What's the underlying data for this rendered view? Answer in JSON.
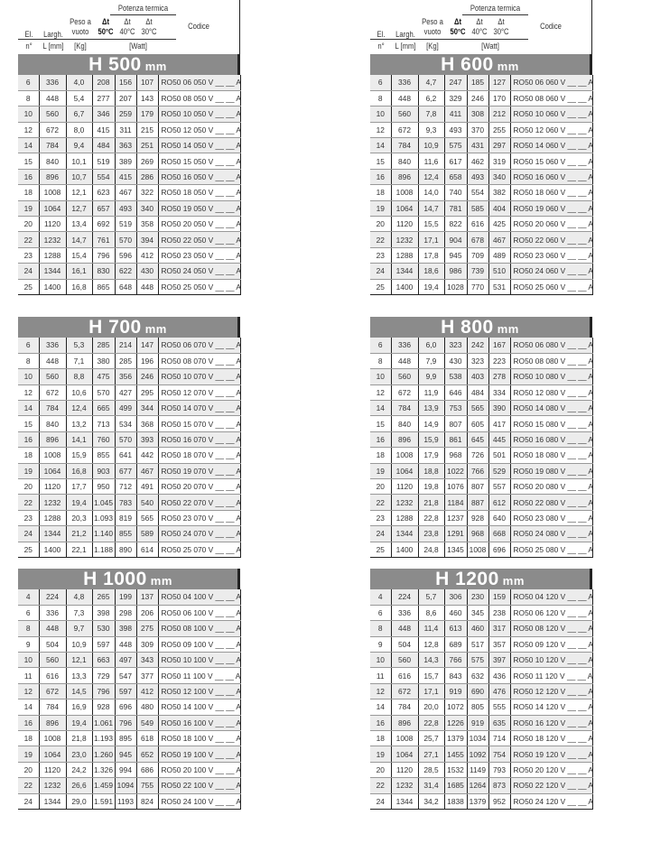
{
  "header": {
    "group": "Potenza termica",
    "el": "El.",
    "largh": "Largh.",
    "peso": "Peso a vuoto",
    "dt50": "Δt 50°C",
    "dt40": "Δt 40°C",
    "dt30": "Δt 30°C",
    "codice": "Codice",
    "n": "n°",
    "l": "L [mm]",
    "kg": "[Kg]",
    "watt": "[Watt]"
  },
  "colors": {
    "banner": "#8b8b8b",
    "row_alt": "#ececec"
  },
  "tables": [
    {
      "title": "H 500",
      "unit": "mm",
      "rows": [
        [
          "6",
          "336",
          "4,0",
          "208",
          "156",
          "107",
          "RO50 06 050 V __ __ A"
        ],
        [
          "8",
          "448",
          "5,4",
          "277",
          "207",
          "143",
          "RO50 08 050 V __ __ A"
        ],
        [
          "10",
          "560",
          "6,7",
          "346",
          "259",
          "179",
          "RO50 10 050 V __ __ A"
        ],
        [
          "12",
          "672",
          "8,0",
          "415",
          "311",
          "215",
          "RO50 12 050 V __ __ A"
        ],
        [
          "14",
          "784",
          "9,4",
          "484",
          "363",
          "251",
          "RO50 14 050 V __ __ A"
        ],
        [
          "15",
          "840",
          "10,1",
          "519",
          "389",
          "269",
          "RO50 15 050 V __ __ A"
        ],
        [
          "16",
          "896",
          "10,7",
          "554",
          "415",
          "286",
          "RO50 16 050 V __ __ A"
        ],
        [
          "18",
          "1008",
          "12,1",
          "623",
          "467",
          "322",
          "RO50 18 050 V __ __ A"
        ],
        [
          "19",
          "1064",
          "12,7",
          "657",
          "493",
          "340",
          "RO50 19 050 V __ __ A"
        ],
        [
          "20",
          "1120",
          "13,4",
          "692",
          "519",
          "358",
          "RO50 20 050 V __ __ A"
        ],
        [
          "22",
          "1232",
          "14,7",
          "761",
          "570",
          "394",
          "RO50 22 050 V __ __ A"
        ],
        [
          "23",
          "1288",
          "15,4",
          "796",
          "596",
          "412",
          "RO50 23 050 V __ __ A"
        ],
        [
          "24",
          "1344",
          "16,1",
          "830",
          "622",
          "430",
          "RO50 24 050 V __ __ A"
        ],
        [
          "25",
          "1400",
          "16,8",
          "865",
          "648",
          "448",
          "RO50 25 050 V __ __ A"
        ]
      ]
    },
    {
      "title": "H 600",
      "unit": "mm",
      "rows": [
        [
          "6",
          "336",
          "4,7",
          "247",
          "185",
          "127",
          "RO50 06 060 V __ __ A"
        ],
        [
          "8",
          "448",
          "6,2",
          "329",
          "246",
          "170",
          "RO50 08 060 V __ __ A"
        ],
        [
          "10",
          "560",
          "7,8",
          "411",
          "308",
          "212",
          "RO50 10 060 V __ __ A"
        ],
        [
          "12",
          "672",
          "9,3",
          "493",
          "370",
          "255",
          "RO50 12 060 V __ __ A"
        ],
        [
          "14",
          "784",
          "10,9",
          "575",
          "431",
          "297",
          "RO50 14 060 V __ __ A"
        ],
        [
          "15",
          "840",
          "11,6",
          "617",
          "462",
          "319",
          "RO50 15 060 V __ __ A"
        ],
        [
          "16",
          "896",
          "12,4",
          "658",
          "493",
          "340",
          "RO50 16 060 V __ __ A"
        ],
        [
          "18",
          "1008",
          "14,0",
          "740",
          "554",
          "382",
          "RO50 18 060 V __ __ A"
        ],
        [
          "19",
          "1064",
          "14,7",
          "781",
          "585",
          "404",
          "RO50 19 060 V __ __ A"
        ],
        [
          "20",
          "1120",
          "15,5",
          "822",
          "616",
          "425",
          "RO50 20 060 V __ __ A"
        ],
        [
          "22",
          "1232",
          "17,1",
          "904",
          "678",
          "467",
          "RO50 22 060 V __ __ A"
        ],
        [
          "23",
          "1288",
          "17,8",
          "945",
          "709",
          "489",
          "RO50 23 060 V __ __ A"
        ],
        [
          "24",
          "1344",
          "18,6",
          "986",
          "739",
          "510",
          "RO50 24 060 V __ __ A"
        ],
        [
          "25",
          "1400",
          "19,4",
          "1028",
          "770",
          "531",
          "RO50 25 060 V __ __ A"
        ]
      ]
    },
    {
      "title": "H 700",
      "unit": "mm",
      "rows": [
        [
          "6",
          "336",
          "5,3",
          "285",
          "214",
          "147",
          "RO50 06 070 V __ __ A"
        ],
        [
          "8",
          "448",
          "7,1",
          "380",
          "285",
          "196",
          "RO50 08 070 V __ __ A"
        ],
        [
          "10",
          "560",
          "8,8",
          "475",
          "356",
          "246",
          "RO50 10 070 V __ __ A"
        ],
        [
          "12",
          "672",
          "10,6",
          "570",
          "427",
          "295",
          "RO50 12 070 V __ __ A"
        ],
        [
          "14",
          "784",
          "12,4",
          "665",
          "499",
          "344",
          "RO50 14 070 V __ __ A"
        ],
        [
          "15",
          "840",
          "13,2",
          "713",
          "534",
          "368",
          "RO50 15 070 V __ __ A"
        ],
        [
          "16",
          "896",
          "14,1",
          "760",
          "570",
          "393",
          "RO50 16 070 V __ __ A"
        ],
        [
          "18",
          "1008",
          "15,9",
          "855",
          "641",
          "442",
          "RO50 18 070 V __ __ A"
        ],
        [
          "19",
          "1064",
          "16,8",
          "903",
          "677",
          "467",
          "RO50 19 070 V __ __ A"
        ],
        [
          "20",
          "1120",
          "17,7",
          "950",
          "712",
          "491",
          "RO50 20 070 V __ __ A"
        ],
        [
          "22",
          "1232",
          "19,4",
          "1.045",
          "783",
          "540",
          "RO50 22 070 V __ __ A"
        ],
        [
          "23",
          "1288",
          "20,3",
          "1.093",
          "819",
          "565",
          "RO50 23 070 V __ __ A"
        ],
        [
          "24",
          "1344",
          "21,2",
          "1.140",
          "855",
          "589",
          "RO50 24 070 V __ __ A"
        ],
        [
          "25",
          "1400",
          "22,1",
          "1.188",
          "890",
          "614",
          "RO50 25 070 V __ __ A"
        ]
      ]
    },
    {
      "title": "H 800",
      "unit": "mm",
      "rows": [
        [
          "6",
          "336",
          "6,0",
          "323",
          "242",
          "167",
          "RO50 06 080 V __ __ A"
        ],
        [
          "8",
          "448",
          "7,9",
          "430",
          "323",
          "223",
          "RO50 08 080 V __ __ A"
        ],
        [
          "10",
          "560",
          "9,9",
          "538",
          "403",
          "278",
          "RO50 10 080 V __ __ A"
        ],
        [
          "12",
          "672",
          "11,9",
          "646",
          "484",
          "334",
          "RO50 12 080 V __ __ A"
        ],
        [
          "14",
          "784",
          "13,9",
          "753",
          "565",
          "390",
          "RO50 14 080 V __ __ A"
        ],
        [
          "15",
          "840",
          "14,9",
          "807",
          "605",
          "417",
          "RO50 15 080 V __ __ A"
        ],
        [
          "16",
          "896",
          "15,9",
          "861",
          "645",
          "445",
          "RO50 16 080 V __ __ A"
        ],
        [
          "18",
          "1008",
          "17,9",
          "968",
          "726",
          "501",
          "RO50 18 080 V __ __ A"
        ],
        [
          "19",
          "1064",
          "18,8",
          "1022",
          "766",
          "529",
          "RO50 19 080 V __ __ A"
        ],
        [
          "20",
          "1120",
          "19,8",
          "1076",
          "807",
          "557",
          "RO50 20 080 V __ __ A"
        ],
        [
          "22",
          "1232",
          "21,8",
          "1184",
          "887",
          "612",
          "RO50 22 080 V __ __ A"
        ],
        [
          "23",
          "1288",
          "22,8",
          "1237",
          "928",
          "640",
          "RO50 23 080 V __ __ A"
        ],
        [
          "24",
          "1344",
          "23,8",
          "1291",
          "968",
          "668",
          "RO50 24 080 V __ __ A"
        ],
        [
          "25",
          "1400",
          "24,8",
          "1345",
          "1008",
          "696",
          "RO50 25 080 V __ __ A"
        ]
      ]
    },
    {
      "title": "H 1000",
      "unit": "mm",
      "rows": [
        [
          "4",
          "224",
          "4,8",
          "265",
          "199",
          "137",
          "RO50 04 100 V __ __ A"
        ],
        [
          "6",
          "336",
          "7,3",
          "398",
          "298",
          "206",
          "RO50 06 100 V __ __ A"
        ],
        [
          "8",
          "448",
          "9,7",
          "530",
          "398",
          "275",
          "RO50 08 100 V __ __ A"
        ],
        [
          "9",
          "504",
          "10,9",
          "597",
          "448",
          "309",
          "RO50 09 100 V __ __ A"
        ],
        [
          "10",
          "560",
          "12,1",
          "663",
          "497",
          "343",
          "RO50 10 100 V __ __ A"
        ],
        [
          "11",
          "616",
          "13,3",
          "729",
          "547",
          "377",
          "RO50 11 100 V __ __ A"
        ],
        [
          "12",
          "672",
          "14,5",
          "796",
          "597",
          "412",
          "RO50 12 100 V __ __ A"
        ],
        [
          "14",
          "784",
          "16,9",
          "928",
          "696",
          "480",
          "RO50 14 100 V __ __ A"
        ],
        [
          "16",
          "896",
          "19,4",
          "1.061",
          "796",
          "549",
          "RO50 16 100 V __ __ A"
        ],
        [
          "18",
          "1008",
          "21,8",
          "1.193",
          "895",
          "618",
          "RO50 18 100 V __ __ A"
        ],
        [
          "19",
          "1064",
          "23,0",
          "1.260",
          "945",
          "652",
          "RO50 19 100 V __ __ A"
        ],
        [
          "20",
          "1120",
          "24,2",
          "1.326",
          "994",
          "686",
          "RO50 20 100 V __ __ A"
        ],
        [
          "22",
          "1232",
          "26,6",
          "1.459",
          "1094",
          "755",
          "RO50 22 100 V __ __ A"
        ],
        [
          "24",
          "1344",
          "29,0",
          "1.591",
          "1193",
          "824",
          "RO50 24 100 V __ __ A"
        ]
      ]
    },
    {
      "title": "H 1200",
      "unit": "mm",
      "rows": [
        [
          "4",
          "224",
          "5,7",
          "306",
          "230",
          "159",
          "RO50 04 120 V __ __ A"
        ],
        [
          "6",
          "336",
          "8,6",
          "460",
          "345",
          "238",
          "RO50 06 120 V __ __ A"
        ],
        [
          "8",
          "448",
          "11,4",
          "613",
          "460",
          "317",
          "RO50 08 120 V __ __ A"
        ],
        [
          "9",
          "504",
          "12,8",
          "689",
          "517",
          "357",
          "RO50 09 120 V __ __ A"
        ],
        [
          "10",
          "560",
          "14,3",
          "766",
          "575",
          "397",
          "RO50 10 120 V __ __ A"
        ],
        [
          "11",
          "616",
          "15,7",
          "843",
          "632",
          "436",
          "RO50 11 120 V __ __ A"
        ],
        [
          "12",
          "672",
          "17,1",
          "919",
          "690",
          "476",
          "RO50 12 120 V __ __ A"
        ],
        [
          "14",
          "784",
          "20,0",
          "1072",
          "805",
          "555",
          "RO50 14 120 V __ __ A"
        ],
        [
          "16",
          "896",
          "22,8",
          "1226",
          "919",
          "635",
          "RO50 16 120 V __ __ A"
        ],
        [
          "18",
          "1008",
          "25,7",
          "1379",
          "1034",
          "714",
          "RO50 18 120 V __ __ A"
        ],
        [
          "19",
          "1064",
          "27,1",
          "1455",
          "1092",
          "754",
          "RO50 19 120 V __ __ A"
        ],
        [
          "20",
          "1120",
          "28,5",
          "1532",
          "1149",
          "793",
          "RO50 20 120 V __ __ A"
        ],
        [
          "22",
          "1232",
          "31,4",
          "1685",
          "1264",
          "873",
          "RO50 22 120 V __ __ A"
        ],
        [
          "24",
          "1344",
          "34,2",
          "1838",
          "1379",
          "952",
          "RO50 24 120 V __ __ A"
        ]
      ]
    }
  ]
}
